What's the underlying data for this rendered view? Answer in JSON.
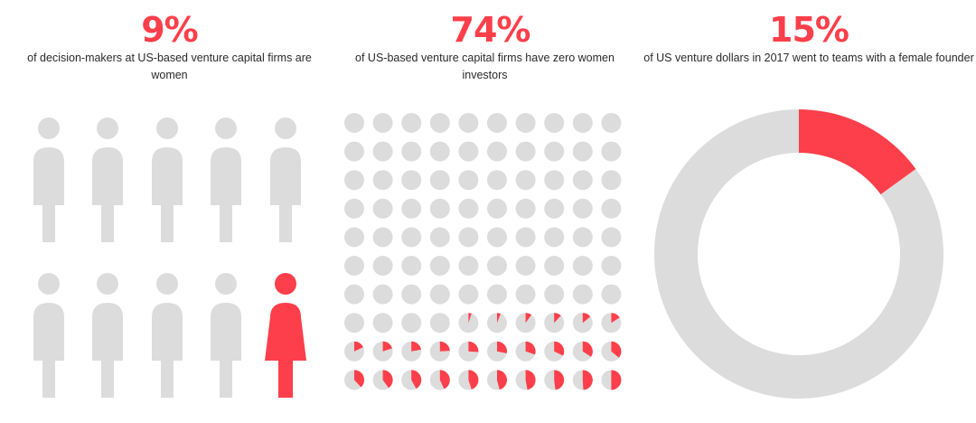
{
  "colors": {
    "accent": "#fc3f4a",
    "neutral": "#dcdcdc",
    "text": "#2a2a2a"
  },
  "panels": [
    {
      "stat": "9%",
      "caption": "of decision-makers at US-based venture capital firms are women"
    },
    {
      "stat": "74%",
      "caption": "of US-based venture capital firms have zero women investors"
    },
    {
      "stat": "15%",
      "caption": "of US venture dollars in 2017 went to teams with a female founder"
    }
  ],
  "chart_data": [
    {
      "type": "pictograph",
      "icon": "person-icon",
      "total_icons": 10,
      "highlighted_icons": 1,
      "value_percent": 9
    },
    {
      "type": "pictograph",
      "icon": "pie-dot",
      "grid": {
        "rows": 10,
        "cols": 10
      },
      "value_percent": 74,
      "dot_fill_fractions": [
        0,
        0,
        0,
        0,
        0,
        0,
        0,
        0,
        0,
        0,
        0,
        0,
        0,
        0,
        0,
        0,
        0,
        0,
        0,
        0,
        0,
        0,
        0,
        0,
        0,
        0,
        0,
        0,
        0,
        0,
        0,
        0,
        0,
        0,
        0,
        0,
        0,
        0,
        0,
        0,
        0,
        0,
        0,
        0,
        0,
        0,
        0,
        0,
        0,
        0,
        0,
        0,
        0,
        0,
        0,
        0,
        0,
        0,
        0,
        0,
        0,
        0,
        0,
        0,
        0,
        0,
        0,
        0,
        0,
        0,
        0,
        0,
        0,
        0,
        0.05,
        0.06,
        0.1,
        0.12,
        0.14,
        0.16,
        0.18,
        0.2,
        0.22,
        0.24,
        0.26,
        0.28,
        0.3,
        0.32,
        0.34,
        0.36,
        0.38,
        0.4,
        0.42,
        0.43,
        0.45,
        0.46,
        0.47,
        0.48,
        0.49,
        0.5
      ]
    },
    {
      "type": "pie",
      "donut": true,
      "slices": [
        {
          "value": 15,
          "color": "#fc3f4a"
        },
        {
          "value": 85,
          "color": "#dcdcdc"
        }
      ]
    }
  ]
}
